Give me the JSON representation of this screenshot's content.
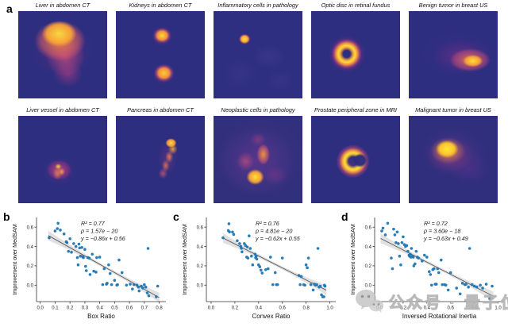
{
  "panels": {
    "a": "a",
    "b": "b",
    "c": "c",
    "d": "d"
  },
  "heatmaps": {
    "items": [
      {
        "title": "Liver in abdomen CT"
      },
      {
        "title": "Kidneys in abdomen CT"
      },
      {
        "title": "Inflammatory cells in pathology"
      },
      {
        "title": "Optic disc in retinal fundus"
      },
      {
        "title": "Benign tumor in breast US"
      },
      {
        "title": "Liver vessel in abdomen CT"
      },
      {
        "title": "Pancreas in abdomen CT"
      },
      {
        "title": "Neoplastic cells in pathology"
      },
      {
        "title": "Prostate peripheral zone in MRI"
      },
      {
        "title": "Malignant tumor in breast US"
      }
    ],
    "colormap": {
      "background": "#2d2e7f",
      "mid": "#cc4778",
      "hot": "#fca636",
      "peak": "#f9dc24"
    }
  },
  "chart_data": [
    {
      "id": "b",
      "type": "scatter",
      "title": "",
      "xlabel": "Box Ratio",
      "ylabel": "Improvement over MedSAM",
      "xlim": [
        -0.025,
        0.845
      ],
      "ylim": [
        -0.17,
        0.7
      ],
      "xticks": [
        0.0,
        0.1,
        0.2,
        0.3,
        0.4,
        0.5,
        0.6,
        0.7,
        0.8
      ],
      "yticks": [
        0.0,
        0.2,
        0.4,
        0.6
      ],
      "grid": false,
      "annotation": [
        "R² = 0.77",
        "p = 1.57e − 20",
        "y = −0.86x + 0.56"
      ],
      "r_squared": 0.77,
      "p_value": "1.57e-20",
      "regression": {
        "slope": -0.86,
        "intercept": 0.56,
        "x_start": 0.055,
        "x_end": 0.8
      },
      "ann_x": 90,
      "point_color": "#1f77b4",
      "line_color": "#595959",
      "band_color": "#bdbdbd",
      "points": [
        [
          0.06,
          0.49
        ],
        [
          0.1,
          0.56
        ],
        [
          0.115,
          0.585
        ],
        [
          0.12,
          0.64
        ],
        [
          0.135,
          0.57
        ],
        [
          0.16,
          0.53
        ],
        [
          0.175,
          0.45
        ],
        [
          0.18,
          0.44
        ],
        [
          0.19,
          0.35
        ],
        [
          0.2,
          0.48
        ],
        [
          0.21,
          0.34
        ],
        [
          0.225,
          0.43
        ],
        [
          0.24,
          0.4
        ],
        [
          0.25,
          0.285
        ],
        [
          0.255,
          0.21
        ],
        [
          0.26,
          0.425
        ],
        [
          0.265,
          0.385
        ],
        [
          0.27,
          0.3
        ],
        [
          0.28,
          0.39
        ],
        [
          0.285,
          0.295
        ],
        [
          0.29,
          0.285
        ],
        [
          0.3,
          0.37
        ],
        [
          0.305,
          0.195
        ],
        [
          0.31,
          0.15
        ],
        [
          0.32,
          0.285
        ],
        [
          0.33,
          0.28
        ],
        [
          0.335,
          0.11
        ],
        [
          0.35,
          0.32
        ],
        [
          0.36,
          0.145
        ],
        [
          0.375,
          0.135
        ],
        [
          0.38,
          0.285
        ],
        [
          0.4,
          0.29
        ],
        [
          0.42,
          0.005
        ],
        [
          0.43,
          0.17
        ],
        [
          0.445,
          0.01
        ],
        [
          0.45,
          0.02
        ],
        [
          0.46,
          0.21
        ],
        [
          0.47,
          0.12
        ],
        [
          0.48,
          0.005
        ],
        [
          0.5,
          0.05
        ],
        [
          0.515,
          0.0
        ],
        [
          0.52,
          0.005
        ],
        [
          0.53,
          0.26
        ],
        [
          0.55,
          0.13
        ],
        [
          0.58,
          0.0
        ],
        [
          0.605,
          0.01
        ],
        [
          0.62,
          -0.04
        ],
        [
          0.63,
          0.005
        ],
        [
          0.65,
          0.0
        ],
        [
          0.66,
          -0.02
        ],
        [
          0.665,
          -0.06
        ],
        [
          0.68,
          -0.01
        ],
        [
          0.69,
          -0.03
        ],
        [
          0.7,
          0.005
        ],
        [
          0.71,
          -0.02
        ],
        [
          0.72,
          -0.08
        ],
        [
          0.725,
          0.38
        ],
        [
          0.73,
          -0.11
        ],
        [
          0.78,
          -0.12
        ],
        [
          0.79,
          -0.01
        ]
      ]
    },
    {
      "id": "c",
      "type": "scatter",
      "title": "",
      "xlabel": "Convex Ratio",
      "ylabel": "Improvement over MedSAM",
      "xlim": [
        -0.04,
        1.05
      ],
      "ylim": [
        -0.17,
        0.7
      ],
      "xticks": [
        0.0,
        0.2,
        0.4,
        0.6,
        0.8,
        1.0
      ],
      "yticks": [
        0.0,
        0.2,
        0.4,
        0.6
      ],
      "grid": false,
      "annotation": [
        "R² = 0.76",
        "p = 4.81e − 20",
        "y = −0.62x + 0.55"
      ],
      "r_squared": 0.76,
      "p_value": "4.81e-20",
      "regression": {
        "slope": -0.62,
        "intercept": 0.55,
        "x_start": 0.1,
        "x_end": 0.97
      },
      "ann_x": 96,
      "point_color": "#1f77b4",
      "line_color": "#595959",
      "band_color": "#bdbdbd",
      "points": [
        [
          0.1,
          0.49
        ],
        [
          0.145,
          0.565
        ],
        [
          0.15,
          0.635
        ],
        [
          0.155,
          0.55
        ],
        [
          0.18,
          0.55
        ],
        [
          0.19,
          0.525
        ],
        [
          0.22,
          0.46
        ],
        [
          0.24,
          0.43
        ],
        [
          0.25,
          0.4
        ],
        [
          0.255,
          0.38
        ],
        [
          0.26,
          0.345
        ],
        [
          0.28,
          0.43
        ],
        [
          0.29,
          0.41
        ],
        [
          0.3,
          0.29
        ],
        [
          0.305,
          0.395
        ],
        [
          0.31,
          0.28
        ],
        [
          0.32,
          0.51
        ],
        [
          0.33,
          0.38
        ],
        [
          0.34,
          0.3
        ],
        [
          0.35,
          0.21
        ],
        [
          0.37,
          0.32
        ],
        [
          0.375,
          0.285
        ],
        [
          0.38,
          0.3
        ],
        [
          0.385,
          0.27
        ],
        [
          0.4,
          0.21
        ],
        [
          0.41,
          0.19
        ],
        [
          0.42,
          0.155
        ],
        [
          0.43,
          0.125
        ],
        [
          0.46,
          0.16
        ],
        [
          0.48,
          0.17
        ],
        [
          0.5,
          0.29
        ],
        [
          0.52,
          0.005
        ],
        [
          0.54,
          0.13
        ],
        [
          0.55,
          0.005
        ],
        [
          0.56,
          0.005
        ],
        [
          0.6,
          0.28
        ],
        [
          0.74,
          0.1
        ],
        [
          0.75,
          0.005
        ],
        [
          0.76,
          0.09
        ],
        [
          0.78,
          0.005
        ],
        [
          0.79,
          0.0
        ],
        [
          0.8,
          0.21
        ],
        [
          0.81,
          0.18
        ],
        [
          0.82,
          0.28
        ],
        [
          0.84,
          0.005
        ],
        [
          0.86,
          -0.05
        ],
        [
          0.87,
          0.01
        ],
        [
          0.88,
          0.0
        ],
        [
          0.89,
          0.005
        ],
        [
          0.9,
          0.38
        ],
        [
          0.91,
          -0.02
        ],
        [
          0.92,
          -0.01
        ],
        [
          0.93,
          -0.1
        ],
        [
          0.94,
          -0.12
        ],
        [
          0.95,
          -0.12
        ],
        [
          0.955,
          0.0
        ],
        [
          0.96,
          -0.01
        ]
      ]
    },
    {
      "id": "d",
      "type": "scatter",
      "title": "",
      "xlabel": "Inversed Rotational Inertia",
      "ylabel": "Improvement over MedSAM",
      "xlim": [
        -0.04,
        1.05
      ],
      "ylim": [
        -0.17,
        0.7
      ],
      "xticks": [
        0.0,
        0.2,
        0.4,
        0.6,
        0.8,
        1.0
      ],
      "yticks": [
        0.0,
        0.2,
        0.4,
        0.6
      ],
      "grid": false,
      "annotation": [
        "R² = 0.72",
        "p = 3.60e − 18",
        "y = −0.63x + 0.49"
      ],
      "r_squared": 0.72,
      "p_value": "3.60e-18",
      "regression": {
        "slope": -0.63,
        "intercept": 0.49,
        "x_start": 0.01,
        "x_end": 0.96
      },
      "ann_x": 96,
      "point_color": "#1f77b4",
      "line_color": "#595959",
      "band_color": "#bdbdbd",
      "points": [
        [
          0.02,
          0.56
        ],
        [
          0.03,
          0.59
        ],
        [
          0.05,
          0.52
        ],
        [
          0.07,
          0.64
        ],
        [
          0.1,
          0.28
        ],
        [
          0.11,
          0.17
        ],
        [
          0.12,
          0.58
        ],
        [
          0.13,
          0.52
        ],
        [
          0.14,
          0.44
        ],
        [
          0.15,
          0.55
        ],
        [
          0.16,
          0.43
        ],
        [
          0.17,
          0.3
        ],
        [
          0.18,
          0.21
        ],
        [
          0.19,
          0.44
        ],
        [
          0.2,
          0.5
        ],
        [
          0.21,
          0.42
        ],
        [
          0.22,
          0.4
        ],
        [
          0.23,
          0.41
        ],
        [
          0.24,
          0.35
        ],
        [
          0.25,
          0.31
        ],
        [
          0.255,
          0.3
        ],
        [
          0.26,
          0.32
        ],
        [
          0.265,
          0.29
        ],
        [
          0.27,
          0.38
        ],
        [
          0.28,
          0.3
        ],
        [
          0.285,
          0.29
        ],
        [
          0.29,
          0.2
        ],
        [
          0.3,
          0.22
        ],
        [
          0.31,
          0.35
        ],
        [
          0.32,
          0.29
        ],
        [
          0.33,
          0.28
        ],
        [
          0.36,
          0.25
        ],
        [
          0.38,
          0.31
        ],
        [
          0.4,
          0.29
        ],
        [
          0.42,
          0.14
        ],
        [
          0.43,
          0.11
        ],
        [
          0.44,
          0.0
        ],
        [
          0.45,
          0.16
        ],
        [
          0.46,
          0.17
        ],
        [
          0.47,
          0.01
        ],
        [
          0.48,
          0.01
        ],
        [
          0.49,
          0.17
        ],
        [
          0.5,
          0.13
        ],
        [
          0.52,
          0.26
        ],
        [
          0.53,
          0.005
        ],
        [
          0.55,
          0.005
        ],
        [
          0.56,
          0.0
        ],
        [
          0.58,
          -0.05
        ],
        [
          0.6,
          0.13
        ],
        [
          0.65,
          -0.03
        ],
        [
          0.68,
          -0.09
        ],
        [
          0.7,
          0.02
        ],
        [
          0.72,
          0.005
        ],
        [
          0.73,
          0.01
        ],
        [
          0.75,
          -0.02
        ],
        [
          0.76,
          0.38
        ],
        [
          0.78,
          0.005
        ],
        [
          0.8,
          -0.01
        ],
        [
          0.82,
          -0.02
        ],
        [
          0.85,
          0.0
        ],
        [
          0.87,
          -0.03
        ],
        [
          0.9,
          0.01
        ],
        [
          0.93,
          -0.14
        ],
        [
          0.95,
          -0.01
        ]
      ]
    }
  ],
  "watermark": {
    "icon": "wechat-icon",
    "text": "公众号 · 量子位"
  }
}
